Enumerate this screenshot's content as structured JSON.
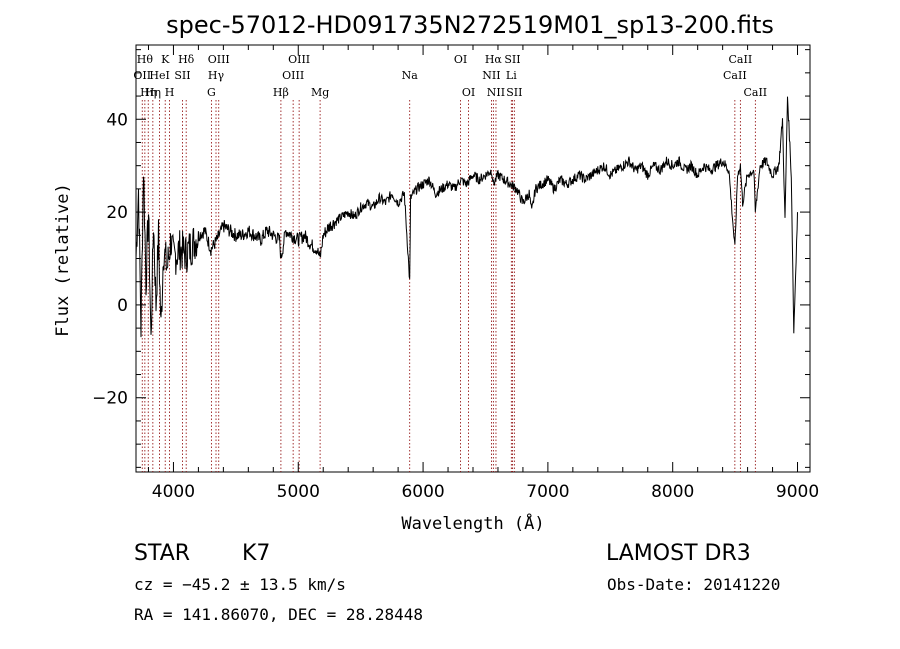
{
  "chart_data": {
    "type": "line",
    "title": "spec-57012-HD091735N272519M01_sp13-200.fits",
    "xlabel": "Wavelength (Å)",
    "ylabel": "Flux (relative)",
    "xlim": [
      3700,
      9100
    ],
    "ylim": [
      -36,
      56
    ],
    "xticks": [
      4000,
      5000,
      6000,
      7000,
      8000,
      9000
    ],
    "yticks": [
      -20,
      0,
      20,
      40
    ],
    "series": [
      {
        "name": "flux",
        "x": [
          3700,
          3720,
          3740,
          3760,
          3780,
          3800,
          3820,
          3840,
          3860,
          3880,
          3900,
          3920,
          3950,
          3980,
          4000,
          4050,
          4100,
          4150,
          4200,
          4250,
          4300,
          4350,
          4400,
          4450,
          4500,
          4550,
          4600,
          4650,
          4700,
          4750,
          4800,
          4850,
          4861,
          4900,
          4950,
          5000,
          5050,
          5100,
          5150,
          5175,
          5200,
          5250,
          5300,
          5350,
          5400,
          5450,
          5500,
          5550,
          5600,
          5650,
          5700,
          5750,
          5800,
          5850,
          5893,
          5900,
          5950,
          6000,
          6050,
          6100,
          6150,
          6200,
          6250,
          6300,
          6350,
          6400,
          6450,
          6500,
          6550,
          6563,
          6600,
          6650,
          6700,
          6750,
          6800,
          6850,
          6870,
          6900,
          6950,
          7000,
          7050,
          7100,
          7150,
          7200,
          7250,
          7300,
          7350,
          7400,
          7450,
          7500,
          7550,
          7600,
          7650,
          7700,
          7750,
          7800,
          7850,
          7900,
          7950,
          8000,
          8050,
          8100,
          8150,
          8200,
          8250,
          8300,
          8350,
          8400,
          8450,
          8498,
          8520,
          8542,
          8560,
          8600,
          8650,
          8662,
          8700,
          8750,
          8800,
          8850,
          8880,
          8900,
          8920,
          8950,
          8970,
          9000
        ],
        "y": [
          10,
          25,
          -5,
          30,
          5,
          20,
          -8,
          18,
          0,
          15,
          -5,
          12,
          8,
          14,
          10,
          12,
          11,
          13,
          15,
          16,
          12,
          14,
          17,
          16,
          15,
          15,
          16,
          15,
          14,
          16,
          15,
          14,
          10,
          16,
          15,
          14,
          15,
          13,
          12,
          10,
          15,
          17,
          18,
          19,
          20,
          19,
          21,
          22,
          21,
          23,
          22,
          24,
          22,
          24,
          5,
          23,
          25,
          26,
          27,
          24,
          25,
          26,
          25,
          27,
          26,
          28,
          27,
          28,
          29,
          26,
          28,
          27,
          26,
          25,
          22,
          24,
          20,
          25,
          26,
          27,
          25,
          27,
          26,
          27,
          28,
          27,
          28,
          29,
          30,
          28,
          29,
          30,
          31,
          29,
          30,
          28,
          30,
          29,
          31,
          30,
          31,
          29,
          30,
          28,
          30,
          29,
          30,
          31,
          29,
          12,
          28,
          30,
          22,
          28,
          29,
          20,
          30,
          31,
          28,
          30,
          40,
          18,
          45,
          28,
          -6,
          20
        ]
      }
    ],
    "lines": [
      {
        "wave": 3750,
        "label": "OII",
        "row": 2
      },
      {
        "wave": 3771,
        "label": "Hθ",
        "row": 1
      },
      {
        "wave": 3798,
        "label": "Hη",
        "row": 3
      },
      {
        "wave": 3835,
        "label": "Hη",
        "row": 3
      },
      {
        "wave": 3889,
        "label": "HeI",
        "row": 2
      },
      {
        "wave": 3934,
        "label": "K",
        "row": 1
      },
      {
        "wave": 3969,
        "label": "H",
        "row": 3
      },
      {
        "wave": 4072,
        "label": "SII",
        "row": 2
      },
      {
        "wave": 4102,
        "label": "Hδ",
        "row": 1
      },
      {
        "wave": 4304,
        "label": "G",
        "row": 3
      },
      {
        "wave": 4341,
        "label": "Hγ",
        "row": 2
      },
      {
        "wave": 4363,
        "label": "OIII",
        "row": 1
      },
      {
        "wave": 4861,
        "label": "Hβ",
        "row": 3
      },
      {
        "wave": 4959,
        "label": "OIII",
        "row": 2
      },
      {
        "wave": 5007,
        "label": "OIII",
        "row": 1
      },
      {
        "wave": 5175,
        "label": "Mg",
        "row": 3
      },
      {
        "wave": 5893,
        "label": "Na",
        "row": 2
      },
      {
        "wave": 6300,
        "label": "OI",
        "row": 1
      },
      {
        "wave": 6364,
        "label": "OI",
        "row": 3
      },
      {
        "wave": 6548,
        "label": "NII",
        "row": 2
      },
      {
        "wave": 6563,
        "label": "Hα",
        "row": 1
      },
      {
        "wave": 6584,
        "label": "NII",
        "row": 3
      },
      {
        "wave": 6707,
        "label": "Li",
        "row": 2
      },
      {
        "wave": 6716,
        "label": "SII",
        "row": 1
      },
      {
        "wave": 6731,
        "label": "SII",
        "row": 3
      },
      {
        "wave": 8498,
        "label": "CaII",
        "row": 2
      },
      {
        "wave": 8542,
        "label": "CaII",
        "row": 1
      },
      {
        "wave": 8662,
        "label": "CaII",
        "row": 3
      }
    ]
  },
  "info": {
    "class": "STAR",
    "subclass": "K7",
    "survey": "LAMOST DR3",
    "cz": "cz = −45.2 ± 13.5 km/s",
    "obsdate": "Obs-Date: 20141220",
    "radec": "RA = 141.86070, DEC =  28.28448"
  },
  "colors": {
    "axis": "#000000",
    "spectrum": "#000000",
    "line_marker": "#8b0000"
  }
}
